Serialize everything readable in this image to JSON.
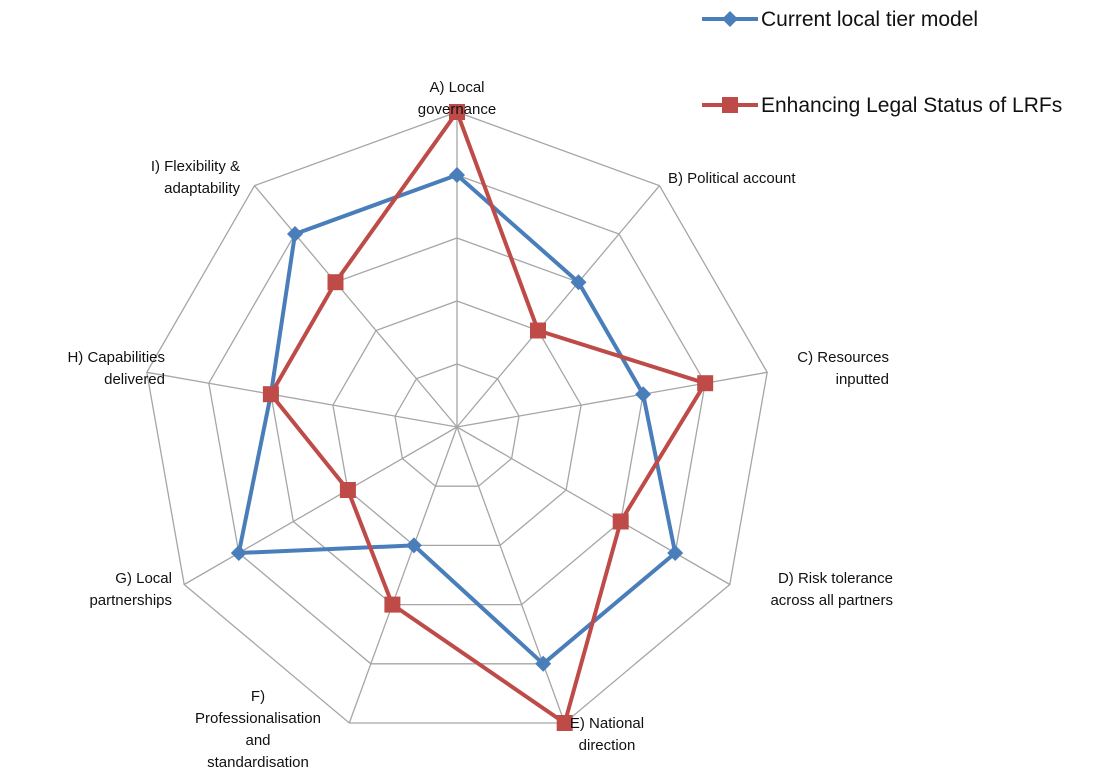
{
  "chart_data": {
    "type": "radar",
    "title": "",
    "categories": [
      "A) Local governance",
      "B) Political account",
      "C) Resources inputted",
      "D) Risk tolerance across all partners",
      "E) National direction",
      "F) Professionalisation and standardisation",
      "G) Local partnerships",
      "H) Capabilities delivered",
      "I) Flexibility & adaptability"
    ],
    "category_label_lines": [
      [
        "A) Local",
        "governance"
      ],
      [
        "B) Political account"
      ],
      [
        "C) Resources",
        "inputted"
      ],
      [
        "D) Risk tolerance",
        "across all partners"
      ],
      [
        "E) National",
        "direction"
      ],
      [
        "F)",
        "Professionalisation",
        "and",
        "standardisation"
      ],
      [
        "G) Local",
        "partnerships"
      ],
      [
        "H) Capabilities",
        "delivered"
      ],
      [
        "I) Flexibility &",
        "adaptability"
      ]
    ],
    "rlim": [
      0,
      5
    ],
    "ring_count": 5,
    "grid": true,
    "legend_position": "top-right",
    "series": [
      {
        "name": "Current local tier model",
        "color": "#4a7ebb",
        "marker": "diamond",
        "values": [
          4,
          3,
          3,
          4,
          4,
          2,
          4,
          3,
          4
        ]
      },
      {
        "name": "Enhancing Legal Status of LRFs",
        "color": "#be4b48",
        "marker": "square",
        "values": [
          5,
          2,
          4,
          3,
          5,
          3,
          2,
          3,
          3
        ]
      }
    ]
  }
}
